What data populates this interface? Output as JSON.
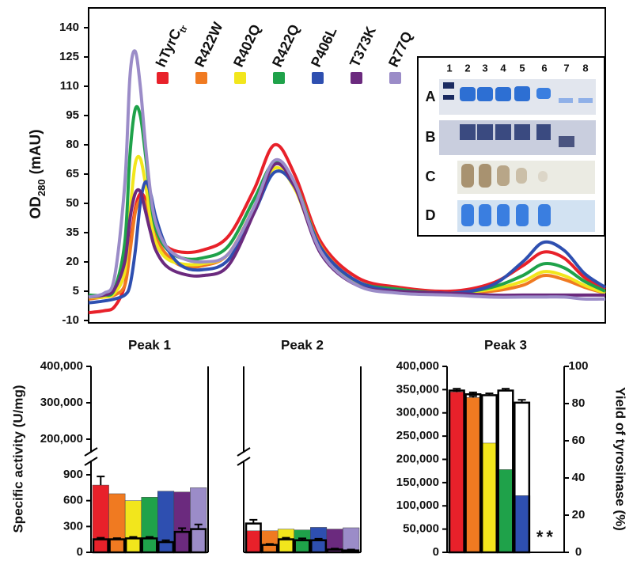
{
  "chart_data": [
    {
      "type": "line",
      "ylabel": [
        "OD",
        "280",
        "(mAU)"
      ],
      "x": [
        0,
        3,
        5,
        7,
        8,
        9,
        10,
        11,
        12,
        13,
        15,
        18,
        22,
        27,
        32,
        36,
        40,
        45,
        52,
        60,
        70,
        78,
        84,
        88,
        92,
        96,
        100
      ],
      "xlim": [
        0,
        100
      ],
      "ylim": [
        -10,
        140
      ],
      "yticks": [
        -10,
        5,
        20,
        35,
        50,
        65,
        80,
        95,
        110,
        125,
        140
      ],
      "series": [
        {
          "name": "hTyrC",
          "name_sub": "tr",
          "color": "#e8212a",
          "values": [
            -6,
            -5,
            -3,
            8,
            28,
            47,
            55,
            52,
            43,
            35,
            28,
            25,
            26,
            33,
            57,
            80,
            64,
            30,
            12,
            7,
            5,
            9,
            18,
            25,
            22,
            12,
            6
          ]
        },
        {
          "name": "R422W",
          "color": "#f07a21",
          "values": [
            1,
            2,
            3,
            8,
            25,
            45,
            52,
            50,
            42,
            33,
            24,
            18,
            18,
            24,
            48,
            70,
            60,
            28,
            10,
            6,
            4,
            5,
            8,
            13,
            11,
            7,
            4
          ]
        },
        {
          "name": "R402Q",
          "color": "#f2e61c",
          "values": [
            2,
            2,
            4,
            15,
            45,
            70,
            73,
            60,
            42,
            30,
            22,
            19,
            19,
            24,
            47,
            68,
            57,
            25,
            9,
            5,
            4,
            6,
            10,
            15,
            13,
            8,
            4
          ]
        },
        {
          "name": "R422Q",
          "color": "#1fa24a",
          "values": [
            3,
            3,
            6,
            30,
            75,
            98,
            95,
            75,
            52,
            37,
            27,
            22,
            22,
            28,
            52,
            71,
            60,
            27,
            10,
            6,
            4,
            7,
            13,
            19,
            17,
            10,
            5
          ]
        },
        {
          "name": "P406L",
          "color": "#2e4fb0",
          "values": [
            -1,
            0,
            1,
            3,
            8,
            25,
            50,
            61,
            55,
            43,
            28,
            18,
            16,
            21,
            45,
            66,
            58,
            27,
            10,
            5,
            4,
            8,
            20,
            30,
            26,
            14,
            7
          ]
        },
        {
          "name": "T373K",
          "color": "#6b2a7e",
          "values": [
            2,
            3,
            6,
            20,
            42,
            55,
            56,
            46,
            35,
            26,
            18,
            14,
            13,
            18,
            45,
            70,
            58,
            24,
            8,
            5,
            4,
            3,
            3,
            3,
            3,
            3,
            3
          ]
        },
        {
          "name": "R77Q",
          "color": "#9b8cc8",
          "values": [
            2,
            4,
            12,
            60,
            115,
            128,
            110,
            80,
            55,
            40,
            28,
            22,
            20,
            24,
            48,
            72,
            60,
            25,
            8,
            4,
            3,
            2,
            2,
            2,
            2,
            1,
            1
          ]
        }
      ],
      "inset": {
        "lanes": [
          "1",
          "2",
          "3",
          "4",
          "5",
          "6",
          "7",
          "8"
        ],
        "rows": [
          "A",
          "B",
          "C",
          "D"
        ]
      }
    },
    {
      "type": "bar",
      "title": "Peak 1",
      "ylabel": "Specific activity (U/mg)",
      "ylim": [
        0,
        900
      ],
      "ylim_upper": [
        200000,
        400000
      ],
      "yticks": [
        0,
        300,
        600,
        900,
        {
          "value": 200000,
          "label": "200,000"
        },
        {
          "value": 300000,
          "label": "300,000"
        },
        {
          "value": 400000,
          "label": "400,000"
        }
      ],
      "y2lim": [
        0,
        100
      ],
      "series": [
        {
          "colors": [
            "#e8212a",
            "#f07a21",
            "#f2e61c",
            "#1fa24a",
            "#2e4fb0",
            "#6b2a7e",
            "#9b8cc8"
          ],
          "values": [
            780,
            680,
            600,
            640,
            710,
            700,
            750
          ],
          "errors": [
            100,
            null,
            null,
            null,
            null,
            null,
            null
          ]
        },
        {
          "axis": "y2",
          "color": "#000000",
          "values": [
            7,
            7,
            7.5,
            7.5,
            5.5,
            11,
            12.5
          ],
          "errors": [
            0.8,
            0.6,
            0.8,
            0.8,
            1,
            2,
            2.5
          ]
        }
      ]
    },
    {
      "type": "bar",
      "title": "Peak 2",
      "ylim": [
        0,
        900
      ],
      "ylim_upper": [
        200000,
        400000
      ],
      "y2lim": [
        0,
        100
      ],
      "series": [
        {
          "colors": [
            "#e8212a",
            "#f07a21",
            "#f2e61c",
            "#1fa24a",
            "#2e4fb0",
            "#6b2a7e",
            "#9b8cc8"
          ],
          "values": [
            250,
            250,
            270,
            260,
            290,
            270,
            285
          ],
          "errors": [
            null,
            null,
            null,
            null,
            null,
            null,
            null
          ]
        },
        {
          "axis": "y2",
          "color": "#000000",
          "values": [
            15.5,
            4,
            7,
            6.5,
            6.5,
            1.5,
            1
          ],
          "errors": [
            2,
            0.5,
            0.8,
            1,
            0.8,
            0.5,
            0.5
          ]
        }
      ]
    },
    {
      "type": "bar",
      "title": "Peak 3",
      "y2label": "Yield of tyrosinase (%)",
      "ylim": [
        0,
        400000
      ],
      "yticks": [
        0,
        {
          "value": 50000,
          "label": "50,000"
        },
        {
          "value": 100000,
          "label": "100,000"
        },
        {
          "value": 150000,
          "label": "150,000"
        },
        {
          "value": 200000,
          "label": "200,000"
        },
        {
          "value": 250000,
          "label": "250,000"
        },
        {
          "value": 300000,
          "label": "300,000"
        },
        {
          "value": 350000,
          "label": "350,000"
        },
        {
          "value": 400000,
          "label": "400,000"
        }
      ],
      "y2lim": [
        0,
        100
      ],
      "y2ticks": [
        0,
        20,
        40,
        60,
        80,
        100
      ],
      "annotation": "**",
      "series": [
        {
          "colors": [
            "#e8212a",
            "#f07a21",
            "#f2e61c",
            "#1fa24a",
            "#2e4fb0",
            "#6b2a7e",
            "#9b8cc8"
          ],
          "values": [
            345000,
            333000,
            235000,
            178000,
            122000,
            null,
            null
          ],
          "errors": [
            2500,
            3000,
            null,
            null,
            null,
            null,
            null
          ]
        },
        {
          "axis": "y2",
          "color": "#000000",
          "values": [
            87,
            85,
            84.5,
            87,
            80.5,
            null,
            null
          ],
          "errors": [
            1,
            1,
            1,
            1,
            1.5,
            null,
            null
          ]
        }
      ]
    }
  ]
}
